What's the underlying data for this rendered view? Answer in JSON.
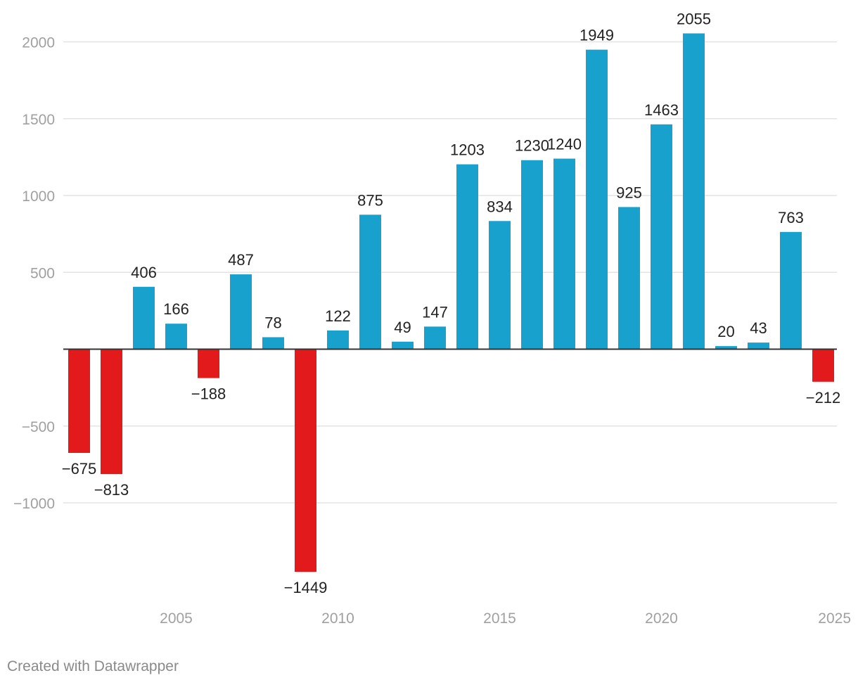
{
  "footer": {
    "credit": "Created with Datawrapper"
  },
  "colors": {
    "positive": "#18a1cd",
    "negative": "#e31a1c",
    "grid": "#e3e3e3",
    "zero_line": "#333333",
    "tick_text": "#a0a0a0",
    "label_text": "#222222"
  },
  "chart_data": {
    "type": "bar",
    "title": "",
    "xlabel": "",
    "ylabel": "",
    "categories": [
      2002,
      2003,
      2004,
      2005,
      2006,
      2007,
      2008,
      2009,
      2010,
      2011,
      2012,
      2013,
      2014,
      2015,
      2016,
      2017,
      2018,
      2019,
      2020,
      2021,
      2022,
      2023,
      2024,
      2025
    ],
    "values": [
      -675,
      -813,
      406,
      166,
      -188,
      487,
      78,
      -1449,
      122,
      875,
      49,
      147,
      1203,
      834,
      1230,
      1240,
      1949,
      925,
      1463,
      2055,
      20,
      43,
      763,
      -212
    ],
    "value_labels": [
      "−675",
      "−813",
      "406",
      "166",
      "−188",
      "487",
      "78",
      "−1449",
      "122",
      "875",
      "49",
      "147",
      "1203",
      "834",
      "1230",
      "1240",
      "1949",
      "925",
      "1463",
      "2055",
      "20",
      "43",
      "763",
      "−212"
    ],
    "y_ticks": [
      2000,
      1500,
      1000,
      500,
      -500,
      -1000
    ],
    "y_tick_labels": [
      "2000",
      "1500",
      "1000",
      "500",
      "−500",
      "−1000"
    ],
    "x_ticks": [
      2005,
      2010,
      2015,
      2020,
      2025
    ],
    "x_tick_labels": [
      "2005",
      "2010",
      "2015",
      "2020",
      "2025"
    ],
    "ylim": [
      -1650,
      2200
    ],
    "grid": true,
    "legend": "none"
  }
}
